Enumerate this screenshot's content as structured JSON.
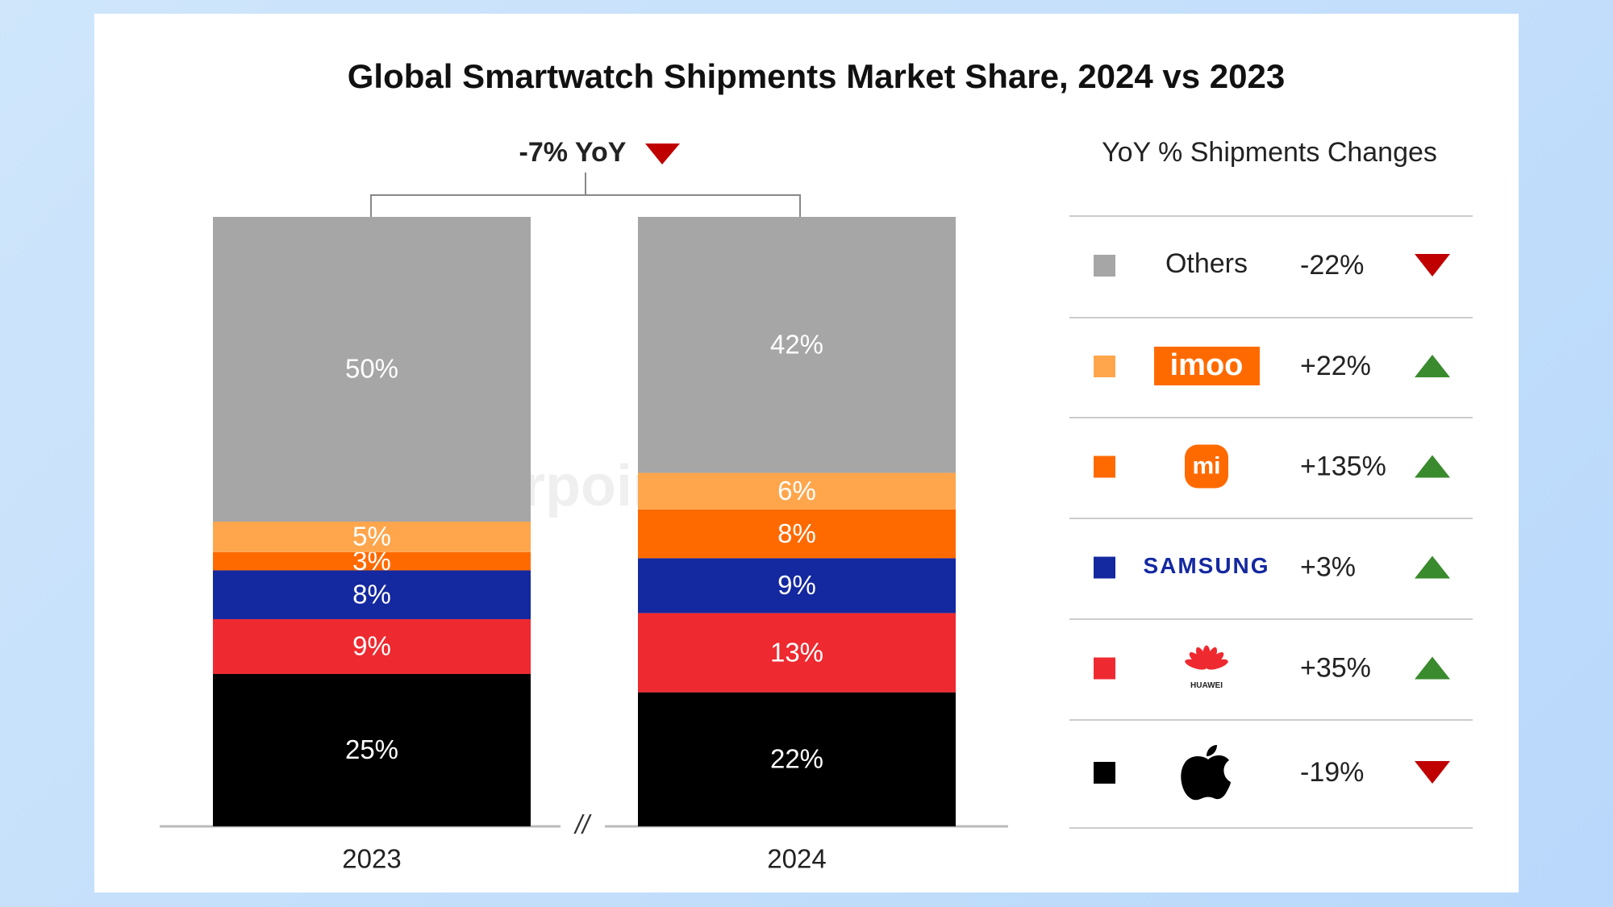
{
  "chart_data": {
    "type": "stacked_bar",
    "title": "Global Smartwatch Shipments Market Share, 2024 vs 2023",
    "annotation": "-7% YoY",
    "legend_title": "YoY % Shipments Changes",
    "watermark": "Counterpoint",
    "axis_break": "//",
    "categories": [
      "2023",
      "2024"
    ],
    "series": [
      {
        "color": "#000000",
        "values": [
          25,
          22
        ],
        "value_labels": [
          "25%",
          "22%"
        ],
        "yoy": -19,
        "yoy_label": "-19%"
      },
      {
        "name": "HUAWEI",
        "color": "#ee2a30",
        "values": [
          9,
          13
        ],
        "value_labels": [
          "9%",
          "13%"
        ],
        "yoy": 35,
        "yoy_label": "+35%"
      },
      {
        "name": "SAMSUNG",
        "color": "#1428a0",
        "values": [
          8,
          9
        ],
        "value_labels": [
          "8%",
          "9%"
        ],
        "yoy": 3,
        "yoy_label": "+3%"
      },
      {
        "name": "mi",
        "color": "#ff6a00",
        "values": [
          3,
          8
        ],
        "value_labels": [
          "3%",
          "8%"
        ],
        "yoy": 135,
        "yoy_label": "+135%"
      },
      {
        "name": "imoo",
        "color": "#ffa64d",
        "values": [
          5,
          6
        ],
        "value_labels": [
          "5%",
          "6%"
        ],
        "yoy": 22,
        "yoy_label": "+22%"
      },
      {
        "name": "Others",
        "color": "#a6a6a6",
        "values": [
          50,
          42
        ],
        "value_labels": [
          "50%",
          "42%"
        ],
        "yoy": -22,
        "yoy_label": "-22%"
      }
    ]
  }
}
